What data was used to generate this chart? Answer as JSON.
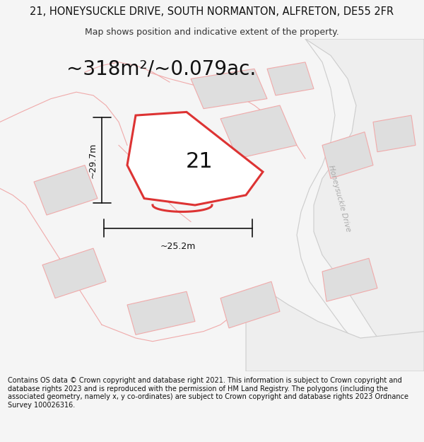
{
  "title": "21, HONEYSUCKLE DRIVE, SOUTH NORMANTON, ALFRETON, DE55 2FR",
  "subtitle": "Map shows position and indicative extent of the property.",
  "area_text": "~318m²/~0.079ac.",
  "label_21": "21",
  "dim_height": "~29.7m",
  "dim_width": "~25.2m",
  "road_label": "Honeysuckle Drive",
  "copyright_text": "Contains OS data © Crown copyright and database right 2021. This information is subject to Crown copyright and database rights 2023 and is reproduced with the permission of HM Land Registry. The polygons (including the associated geometry, namely x, y co-ordinates) are subject to Crown copyright and database rights 2023 Ordnance Survey 100026316.",
  "bg_color": "#f5f5f5",
  "map_bg": "#f7f7f7",
  "plot_color_fill": "#ffffff",
  "plot_color_edge": "#dd3333",
  "neighbor_fill": "#dedede",
  "neighbor_edge": "#f0aaaa",
  "road_color": "#f5e0e0",
  "dim_color": "#111111",
  "title_fontsize": 10.5,
  "subtitle_fontsize": 9,
  "area_fontsize": 20,
  "label_fontsize": 22,
  "copyright_fontsize": 7.0
}
